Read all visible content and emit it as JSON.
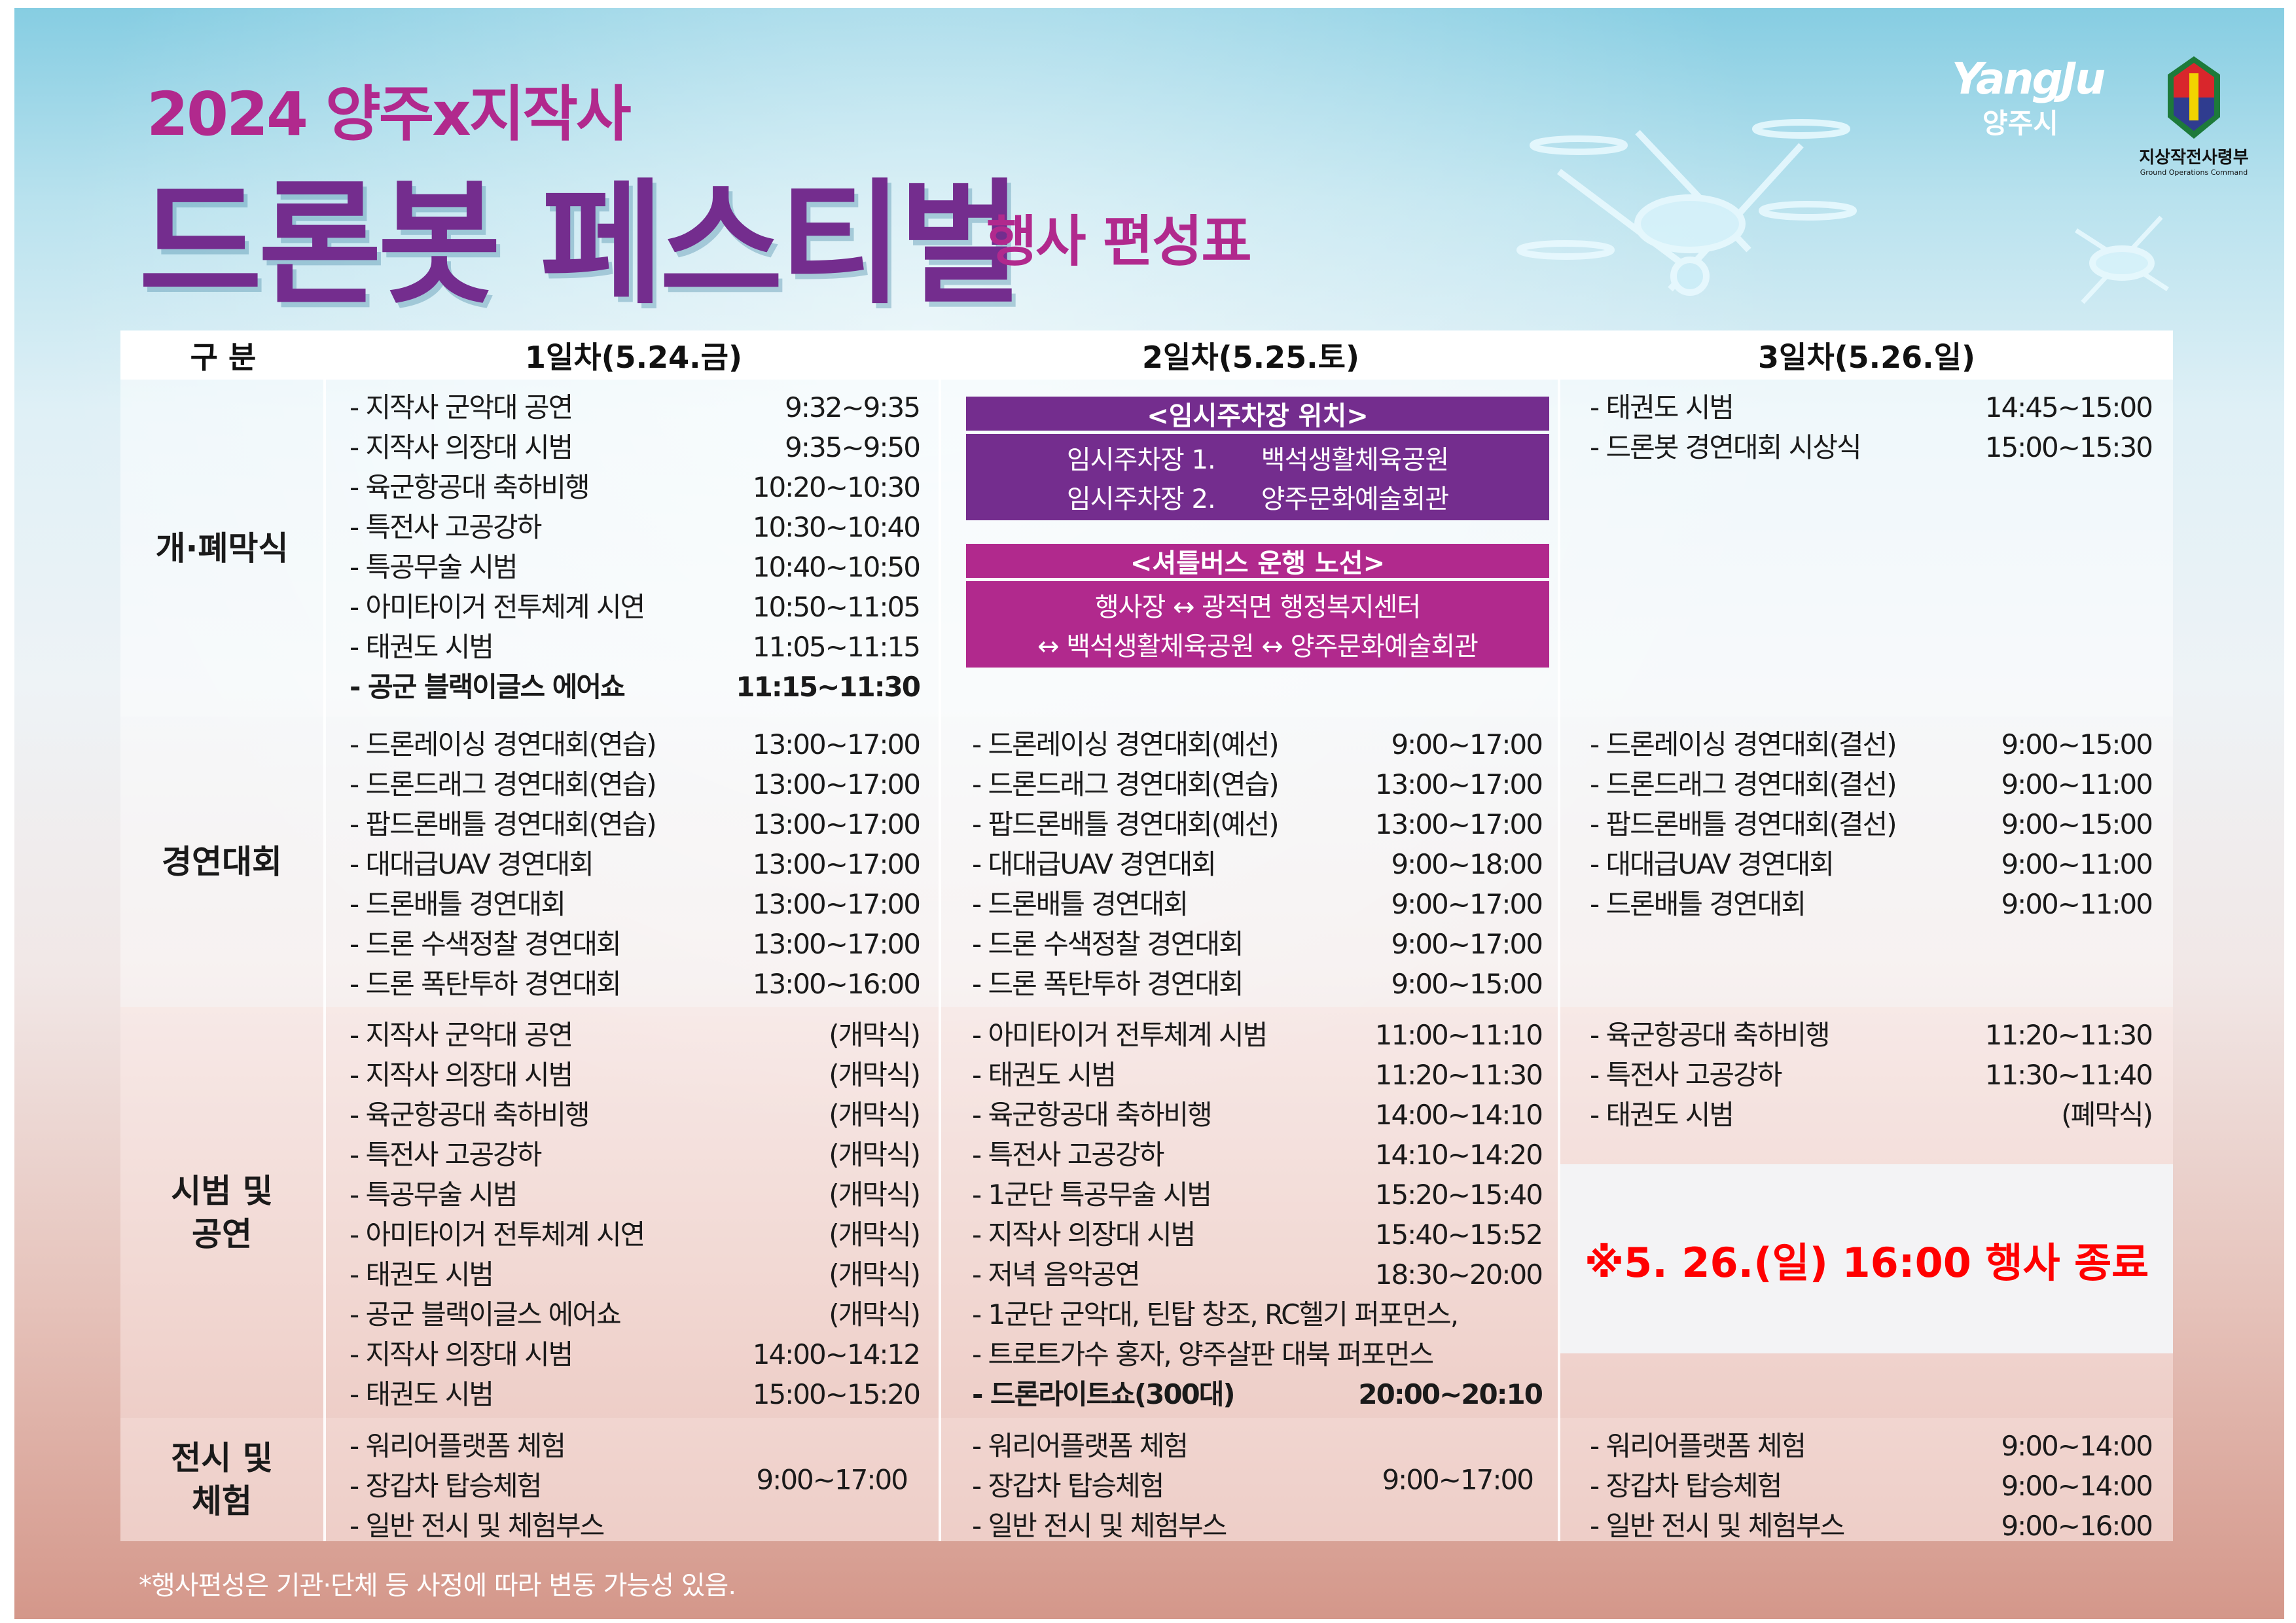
{
  "title": {
    "line1": "2024 양주x지작사",
    "line2": "드론봇 페스티벌",
    "subtitle": "행사 편성표"
  },
  "logos": {
    "yangju_en": "YangJu",
    "yangju_ko": "양주시",
    "gocom_ko": "지상작전사령부",
    "gocom_en": "Ground Operations Command"
  },
  "colors": {
    "purple": "#742d8e",
    "magenta": "#b1298d",
    "notice_red": "#ff0000"
  },
  "table": {
    "headers": [
      "구  분",
      "1일차(5.24.금)",
      "2일차(5.25.토)",
      "3일차(5.26.일)"
    ],
    "rows": [
      {
        "label": "개·폐막식",
        "day1": [
          {
            "name": "- 지작사 군악대 공연",
            "time": "9:32~9:35"
          },
          {
            "name": "- 지작사 의장대 시범",
            "time": "9:35~9:50"
          },
          {
            "name": "- 육군항공대 축하비행",
            "time": "10:20~10:30"
          },
          {
            "name": "- 특전사 고공강하",
            "time": "10:30~10:40"
          },
          {
            "name": "- 특공무술 시범",
            "time": "10:40~10:50"
          },
          {
            "name": "- 아미타이거 전투체계 시연",
            "time": "10:50~11:05"
          },
          {
            "name": "- 태권도 시범",
            "time": "11:05~11:15"
          },
          {
            "name": "- 공군 블랙이글스 에어쇼",
            "time": "11:15~11:30",
            "bold": true
          }
        ],
        "day2_boxes": {
          "parking": {
            "title": "<임시주차장 위치>",
            "lines": [
              {
                "label": "임시주차장 1.",
                "value": "백석생활체육공원"
              },
              {
                "label": "임시주차장 2.",
                "value": "양주문화예술회관"
              }
            ]
          },
          "shuttle": {
            "title": "<셔틀버스 운행 노선>",
            "lines": [
              "행사장 ↔ 광적면 행정복지센터",
              "↔ 백석생활체육공원 ↔ 양주문화예술회관"
            ]
          }
        },
        "day3": [
          {
            "name": "- 태권도 시범",
            "time": "14:45~15:00"
          },
          {
            "name": "- 드론봇 경연대회 시상식",
            "time": "15:00~15:30"
          }
        ]
      },
      {
        "label": "경연대회",
        "day1": [
          {
            "name": "- 드론레이싱 경연대회(연습)",
            "time": "13:00~17:00"
          },
          {
            "name": "- 드론드래그 경연대회(연습)",
            "time": "13:00~17:00"
          },
          {
            "name": "- 팝드론배틀 경연대회(연습)",
            "time": "13:00~17:00"
          },
          {
            "name": "- 대대급UAV 경연대회",
            "time": "13:00~17:00"
          },
          {
            "name": "- 드론배틀 경연대회",
            "time": "13:00~17:00"
          },
          {
            "name": "- 드론 수색정찰 경연대회",
            "time": "13:00~17:00"
          },
          {
            "name": "- 드론 폭탄투하 경연대회",
            "time": "13:00~16:00"
          }
        ],
        "day2": [
          {
            "name": "- 드론레이싱 경연대회(예선)",
            "time": "9:00~17:00"
          },
          {
            "name": "- 드론드래그 경연대회(연습)",
            "time": "13:00~17:00"
          },
          {
            "name": "- 팝드론배틀 경연대회(예선)",
            "time": "13:00~17:00"
          },
          {
            "name": "- 대대급UAV 경연대회",
            "time": "9:00~18:00"
          },
          {
            "name": "- 드론배틀 경연대회",
            "time": "9:00~17:00"
          },
          {
            "name": "- 드론 수색정찰 경연대회",
            "time": "9:00~17:00"
          },
          {
            "name": "- 드론 폭탄투하 경연대회",
            "time": "9:00~15:00"
          }
        ],
        "day3": [
          {
            "name": "- 드론레이싱 경연대회(결선)",
            "time": "9:00~15:00"
          },
          {
            "name": "- 드론드래그 경연대회(결선)",
            "time": "9:00~11:00"
          },
          {
            "name": "- 팝드론배틀 경연대회(결선)",
            "time": "9:00~15:00"
          },
          {
            "name": "- 대대급UAV 경연대회",
            "time": "9:00~11:00"
          },
          {
            "name": "- 드론배틀 경연대회",
            "time": "9:00~11:00"
          }
        ]
      },
      {
        "label": "시범 및\n공연",
        "day1": [
          {
            "name": "- 지작사 군악대 공연",
            "time": "(개막식)"
          },
          {
            "name": "- 지작사 의장대 시범",
            "time": "(개막식)"
          },
          {
            "name": "- 육군항공대 축하비행",
            "time": "(개막식)"
          },
          {
            "name": "- 특전사 고공강하",
            "time": "(개막식)"
          },
          {
            "name": "- 특공무술 시범",
            "time": "(개막식)"
          },
          {
            "name": "- 아미타이거 전투체계 시연",
            "time": "(개막식)"
          },
          {
            "name": "- 태권도 시범",
            "time": "(개막식)"
          },
          {
            "name": "- 공군 블랙이글스 에어쇼",
            "time": "(개막식)"
          },
          {
            "name": "- 지작사 의장대 시범",
            "time": "14:00~14:12"
          },
          {
            "name": "- 태권도 시범",
            "time": "15:00~15:20"
          }
        ],
        "day2": [
          {
            "name": "- 아미타이거 전투체계 시범",
            "time": "11:00~11:10"
          },
          {
            "name": "- 태권도 시범",
            "time": "11:20~11:30"
          },
          {
            "name": "- 육군항공대 축하비행",
            "time": "14:00~14:10"
          },
          {
            "name": "- 특전사 고공강하",
            "time": "14:10~14:20"
          },
          {
            "name": "- 1군단 특공무술 시범",
            "time": "15:20~15:40"
          },
          {
            "name": "- 지작사 의장대 시범",
            "time": "15:40~15:52"
          },
          {
            "name": "- 저녁 음악공연",
            "time": "18:30~20:00"
          },
          {
            "name": "- 1군단 군악대, 틴탑 창조, RC헬기 퍼포먼스,",
            "time": ""
          },
          {
            "name": "- 트로트가수 홍자, 양주살판 대북 퍼포먼스",
            "time": ""
          },
          {
            "name": "- 드론라이트쇼(300대)",
            "time": "20:00~20:10",
            "bold": true
          }
        ],
        "day3": [
          {
            "name": "- 육군항공대 축하비행",
            "time": "11:20~11:30"
          },
          {
            "name": "- 특전사 고공강하",
            "time": "11:30~11:40"
          },
          {
            "name": "- 태권도 시범",
            "time": "(폐막식)"
          }
        ],
        "day3_notice": "※5. 26.(일) 16:00 행사 종료"
      },
      {
        "label": "전시 및\n체험",
        "day1": [
          {
            "name": "- 워리어플랫폼 체험"
          },
          {
            "name": "- 장갑차 탑승체험"
          },
          {
            "name": "- 일반 전시 및 체험부스"
          }
        ],
        "day1_time": "9:00~17:00",
        "day2": [
          {
            "name": "- 워리어플랫폼 체험"
          },
          {
            "name": "- 장갑차 탑승체험"
          },
          {
            "name": "- 일반 전시 및 체험부스"
          }
        ],
        "day2_time": "9:00~17:00",
        "day3": [
          {
            "name": "- 워리어플랫폼 체험",
            "time": "9:00~14:00"
          },
          {
            "name": "- 장갑차 탑승체험",
            "time": "9:00~14:00"
          },
          {
            "name": "- 일반 전시 및 체험부스",
            "time": "9:00~16:00"
          }
        ]
      }
    ]
  },
  "footnote": "*행사편성은 기관·단체 등 사정에 따라 변동 가능성 있음."
}
